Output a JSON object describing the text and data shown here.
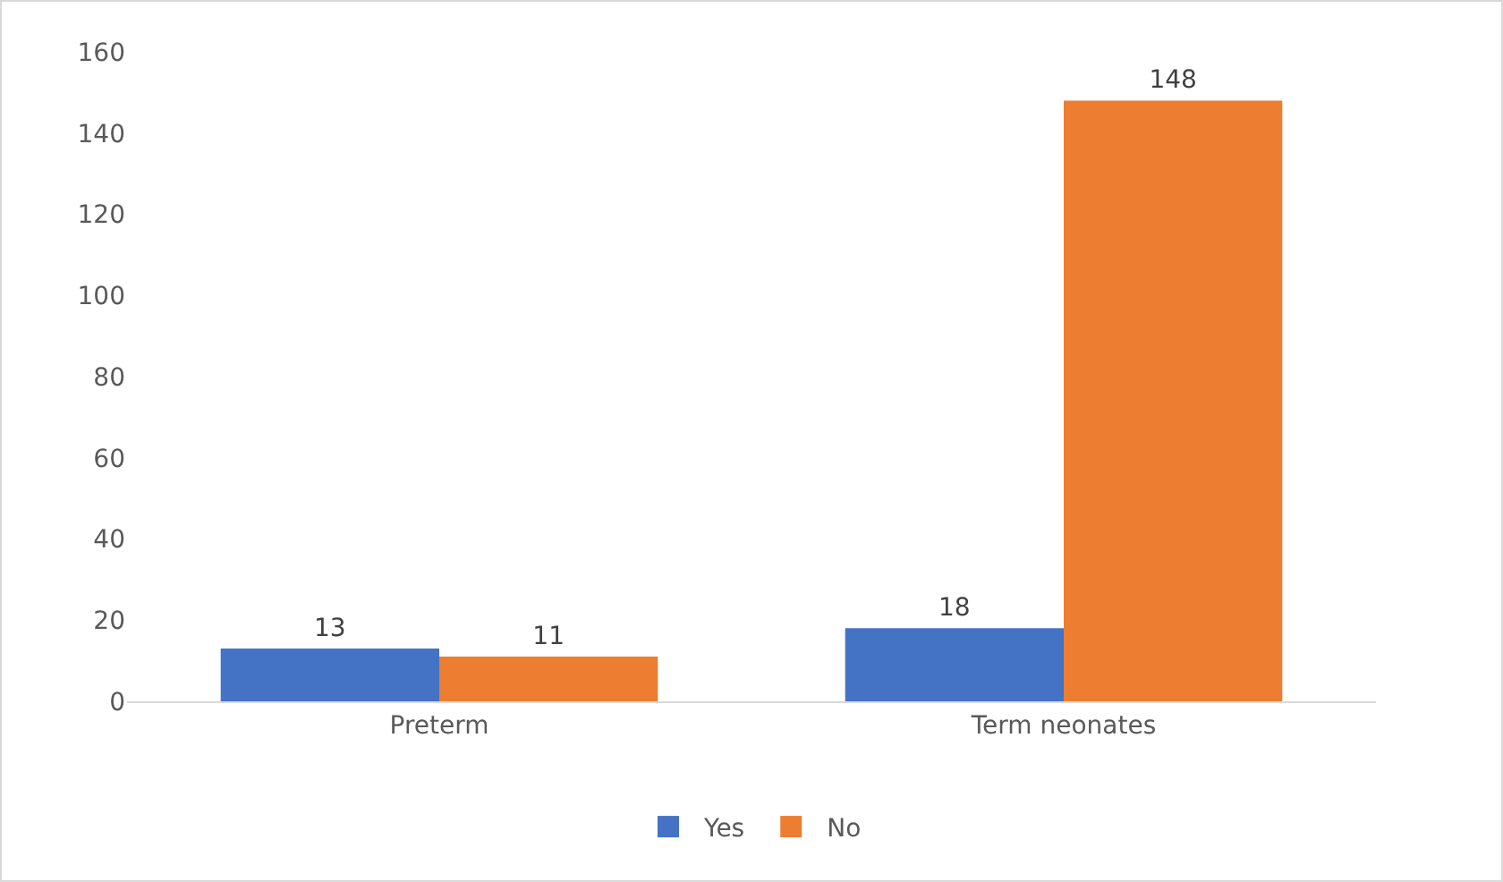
{
  "chart_data": {
    "type": "bar",
    "categories": [
      "Preterm",
      "Term neonates"
    ],
    "series": [
      {
        "name": "Yes",
        "color": "#4472c4",
        "values": [
          13,
          18
        ]
      },
      {
        "name": "No",
        "color": "#ed7d31",
        "values": [
          11,
          148
        ]
      }
    ],
    "ylim": [
      0,
      160
    ],
    "yticks": [
      0,
      20,
      40,
      60,
      80,
      100,
      120,
      140,
      160
    ],
    "grid": false,
    "legend": "bottom",
    "data_labels": true
  }
}
